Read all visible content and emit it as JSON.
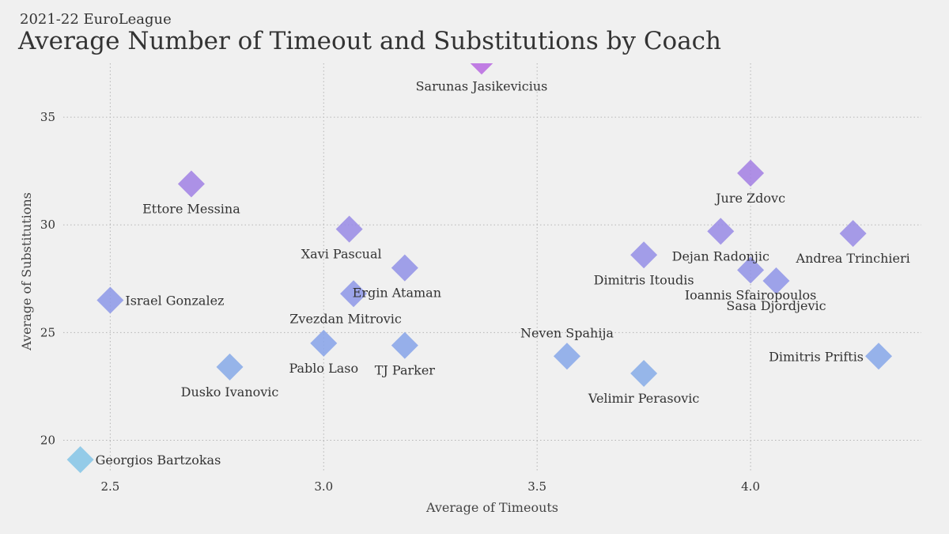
{
  "header": {
    "subtitle": "2021-22 EuroLeague",
    "title": "Average Number of Timeout and Substitutions by Coach"
  },
  "chart_data": {
    "type": "scatter",
    "marker": "diamond",
    "xlabel": "Average of Timeouts",
    "ylabel": "Average of Substitutions",
    "xlim": [
      2.39,
      4.4
    ],
    "ylim": [
      18.4,
      37.5
    ],
    "xticks": [
      2.5,
      3.0,
      3.5,
      4.0
    ],
    "yticks": [
      20,
      25,
      30,
      35
    ],
    "xtick_labels": [
      "2.5",
      "3.0",
      "3.5",
      "4.0"
    ],
    "ytick_labels": [
      "20",
      "25",
      "30",
      "35"
    ],
    "grid": true,
    "colors": {
      "low": "#86c6e6",
      "high": "#b86be0",
      "mid": "#8a9ee8"
    },
    "points": [
      {
        "name": "Sarunas Jasikevicius",
        "x": 3.37,
        "y": 37.6,
        "label_pos": "below"
      },
      {
        "name": "Jure Zdovc",
        "x": 4.0,
        "y": 32.4,
        "label_pos": "below"
      },
      {
        "name": "Ettore Messina",
        "x": 2.69,
        "y": 31.9,
        "label_pos": "below"
      },
      {
        "name": "Xavi Pascual",
        "x": 3.06,
        "y": 29.8,
        "label_pos": "below-left"
      },
      {
        "name": "Dejan Radonjic",
        "x": 3.93,
        "y": 29.7,
        "label_pos": "below"
      },
      {
        "name": "Andrea Trinchieri",
        "x": 4.24,
        "y": 29.6,
        "label_pos": "below"
      },
      {
        "name": "Dimitris Itoudis",
        "x": 3.75,
        "y": 28.6,
        "label_pos": "below"
      },
      {
        "name": "Ergin Ataman",
        "x": 3.19,
        "y": 28.0,
        "label_pos": "below-left"
      },
      {
        "name": "Ioannis Sfairopoulos",
        "x": 4.0,
        "y": 27.9,
        "label_pos": "below"
      },
      {
        "name": "Sasa Djordjevic",
        "x": 4.06,
        "y": 27.4,
        "label_pos": "below"
      },
      {
        "name": "Israel Gonzalez",
        "x": 2.5,
        "y": 26.5,
        "label_pos": "right"
      },
      {
        "name": "Zvezdan Mitrovic",
        "x": 3.07,
        "y": 26.8,
        "label_pos": "below-left"
      },
      {
        "name": "Pablo Laso",
        "x": 3.0,
        "y": 24.5,
        "label_pos": "below"
      },
      {
        "name": "TJ Parker",
        "x": 3.19,
        "y": 24.4,
        "label_pos": "below"
      },
      {
        "name": "Neven Spahija",
        "x": 3.57,
        "y": 23.9,
        "label_pos": "above"
      },
      {
        "name": "Dimitris Priftis",
        "x": 4.3,
        "y": 23.9,
        "label_pos": "left"
      },
      {
        "name": "Dusko Ivanovic",
        "x": 2.78,
        "y": 23.4,
        "label_pos": "below"
      },
      {
        "name": "Velimir Perasovic",
        "x": 3.75,
        "y": 23.1,
        "label_pos": "below"
      },
      {
        "name": "Georgios Bartzokas",
        "x": 2.43,
        "y": 19.1,
        "label_pos": "right"
      }
    ]
  }
}
